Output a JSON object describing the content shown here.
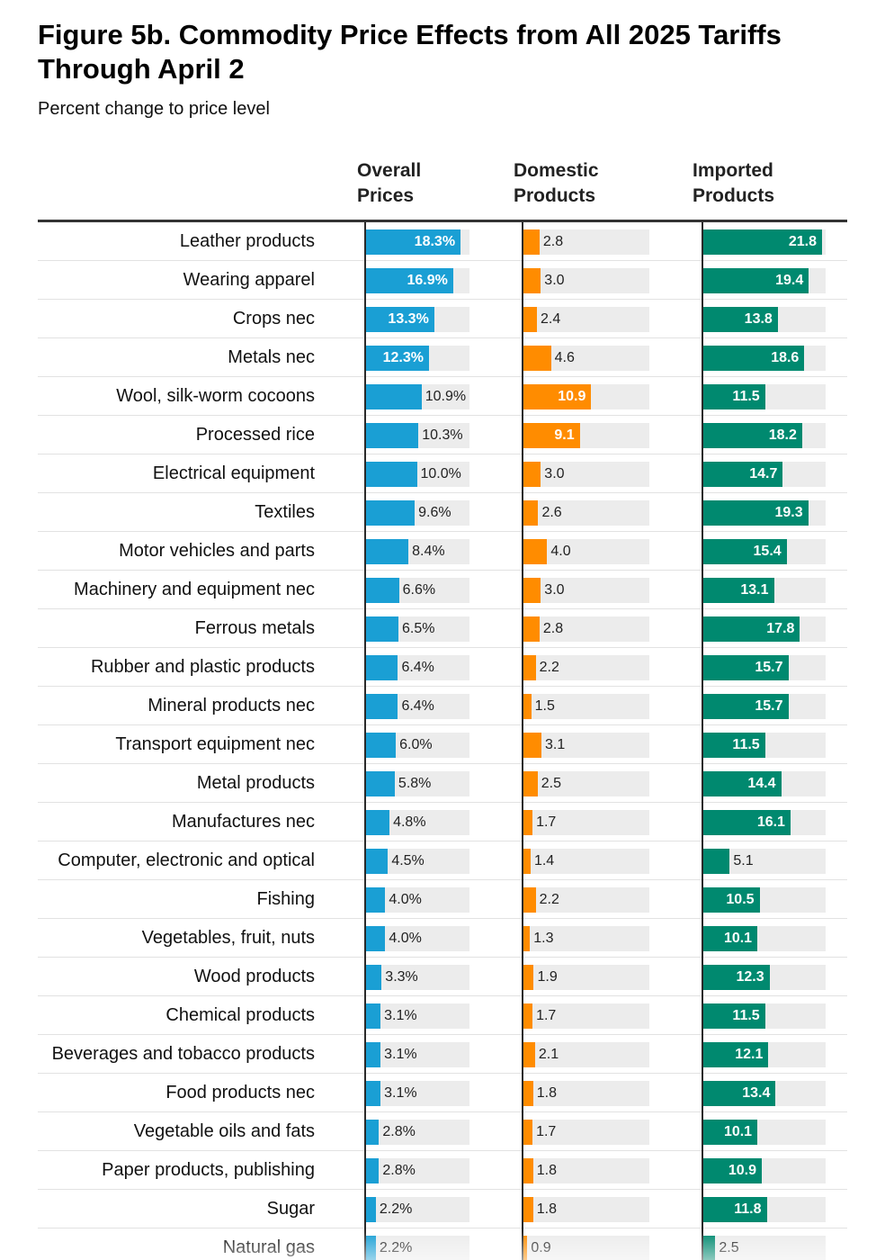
{
  "chart_data": {
    "type": "bar",
    "title": "Figure 5b. Commodity Price Effects from All 2025 Tariffs Through April 2",
    "subtitle": "Percent change to price level",
    "columns": [
      {
        "key": "overall",
        "line1": "Overall",
        "line2": "Prices",
        "color": "#1a9fd4",
        "suffix": "%",
        "max": 20
      },
      {
        "key": "domestic",
        "line1": "Domestic",
        "line2": "Products",
        "color": "#ff8c00",
        "suffix": "",
        "max": 20
      },
      {
        "key": "imported",
        "line1": "Imported",
        "line2": "Products",
        "color": "#00896f",
        "suffix": "",
        "max": 22
      }
    ],
    "categories": [
      "Leather products",
      "Wearing apparel",
      "Crops nec",
      "Metals nec",
      "Wool, silk-worm cocoons",
      "Processed rice",
      "Electrical equipment",
      "Textiles",
      "Motor vehicles and parts",
      "Machinery and equipment nec",
      "Ferrous metals",
      "Rubber and plastic products",
      "Mineral products nec",
      "Transport equipment nec",
      "Metal products",
      "Manufactures nec",
      "Computer, electronic and optical",
      "Fishing",
      "Vegetables, fruit, nuts",
      "Wood products",
      "Chemical products",
      "Beverages and tobacco products",
      "Food products nec",
      "Vegetable oils and fats",
      "Paper products, publishing",
      "Sugar",
      "Natural gas"
    ],
    "series": [
      {
        "name": "Overall Prices",
        "values": [
          18.3,
          16.9,
          13.3,
          12.3,
          10.9,
          10.3,
          10.0,
          9.6,
          8.4,
          6.6,
          6.5,
          6.4,
          6.4,
          6.0,
          5.8,
          4.8,
          4.5,
          4.0,
          4.0,
          3.3,
          3.1,
          3.1,
          3.1,
          2.8,
          2.8,
          2.2,
          2.2
        ]
      },
      {
        "name": "Domestic Products",
        "values": [
          2.8,
          3.0,
          2.4,
          4.6,
          10.9,
          9.1,
          3.0,
          2.6,
          4.0,
          3.0,
          2.8,
          2.2,
          1.5,
          3.1,
          2.5,
          1.7,
          1.4,
          2.2,
          1.3,
          1.9,
          1.7,
          2.1,
          1.8,
          1.7,
          1.8,
          1.8,
          0.9
        ]
      },
      {
        "name": "Imported Products",
        "values": [
          21.8,
          19.4,
          13.8,
          18.6,
          11.5,
          18.2,
          14.7,
          19.3,
          15.4,
          13.1,
          17.8,
          15.7,
          15.7,
          11.5,
          14.4,
          16.1,
          5.1,
          10.5,
          10.1,
          12.3,
          11.5,
          12.1,
          13.4,
          10.1,
          10.9,
          11.8,
          2.5
        ]
      }
    ]
  }
}
